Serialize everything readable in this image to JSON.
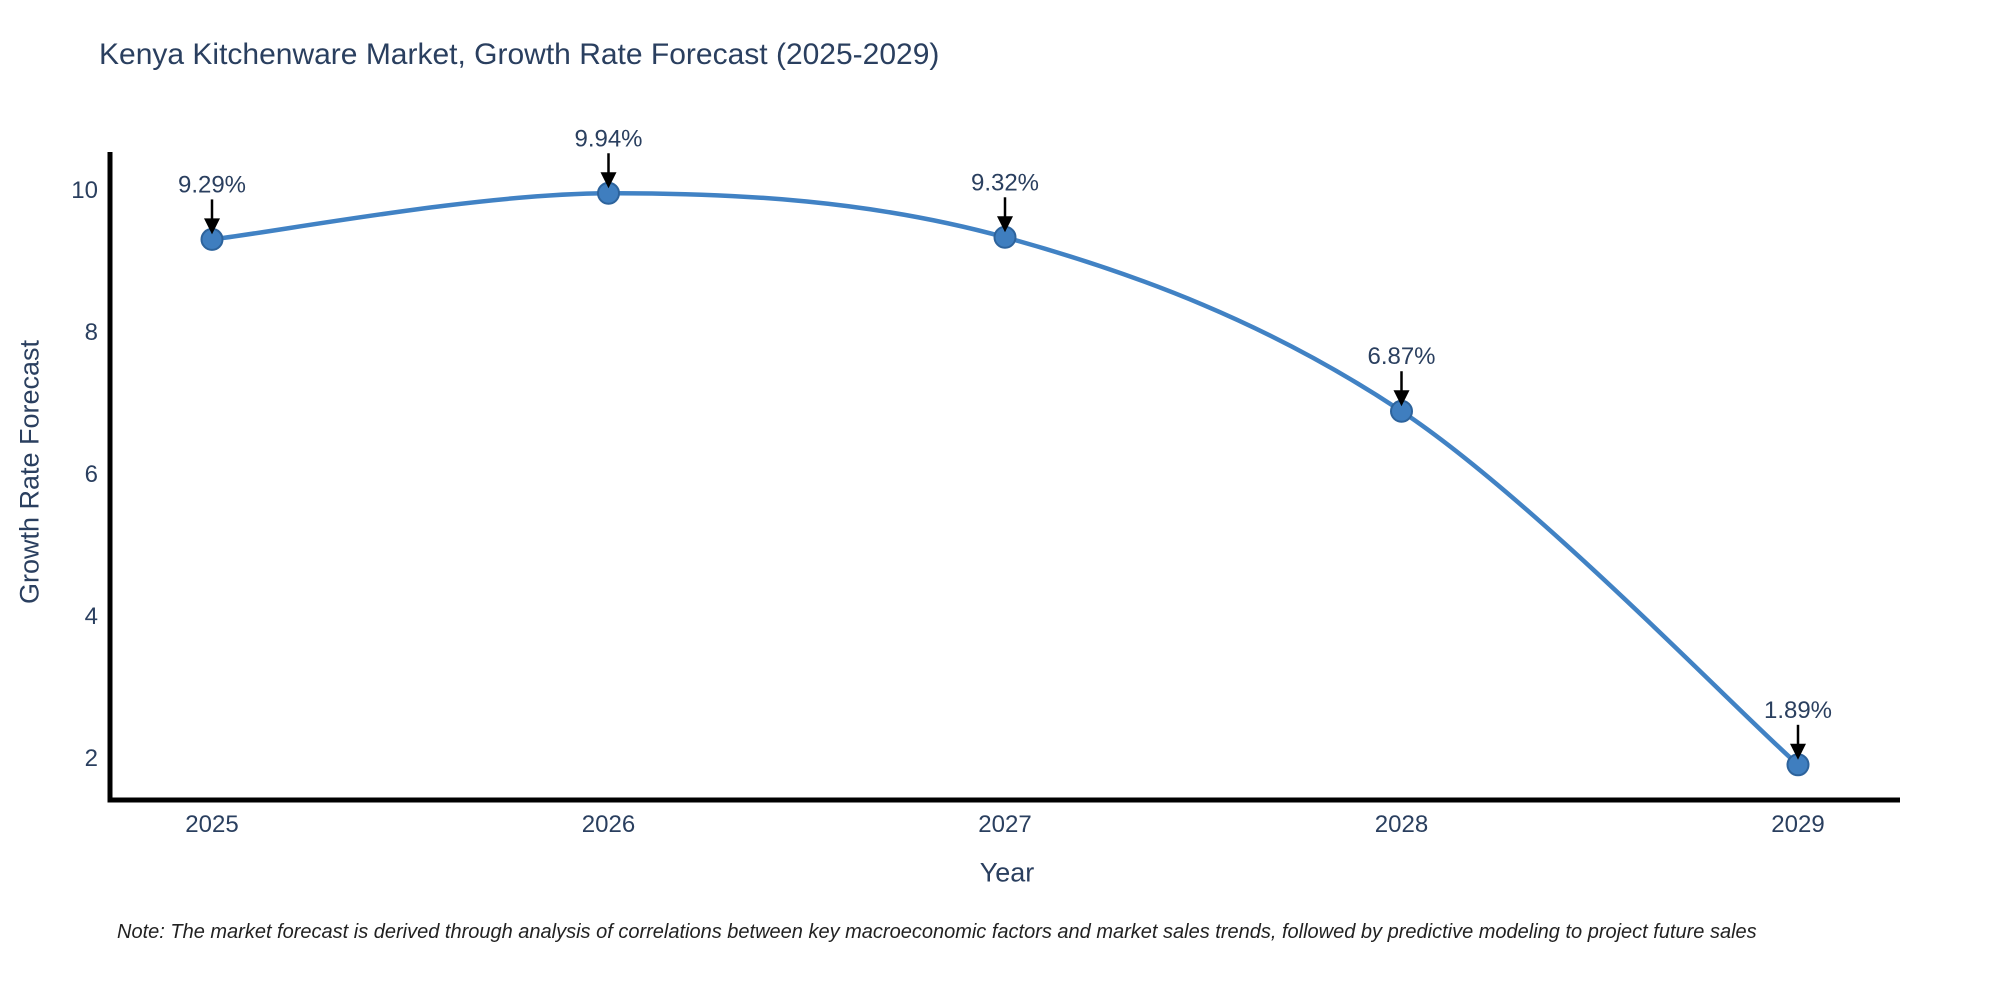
{
  "title": "Kenya Kitchenware Market, Growth Rate Forecast (2025-2029)",
  "note": "Note: The market forecast is derived through analysis of correlations between key macroeconomic factors and market sales trends, followed by predictive modeling to project future sales",
  "chart_data": {
    "type": "line",
    "title": "Kenya Kitchenware Market, Growth Rate Forecast (2025-2029)",
    "xlabel": "Year",
    "ylabel": "Growth Rate Forecast",
    "categories": [
      "2025",
      "2026",
      "2027",
      "2028",
      "2029"
    ],
    "series": [
      {
        "name": "Growth Rate Forecast",
        "values": [
          9.29,
          9.94,
          9.32,
          6.87,
          1.89
        ]
      }
    ],
    "point_labels": [
      "9.29%",
      "9.94%",
      "9.32%",
      "6.87%",
      "1.89%"
    ],
    "yticks": [
      2,
      4,
      6,
      8,
      10
    ],
    "ylim": [
      1.4,
      10.55
    ],
    "xlim_note": "axis padding of about a quarter category on each side",
    "line_shape": "spline",
    "grid": false,
    "legend_position": "none",
    "annotation_style": "value labels above points with black down arrows",
    "colors": {
      "line": "#4182c4",
      "marker": "#3f7ebf",
      "marker_edge": "#2d639c",
      "axis": "#000000",
      "text": "#2a3f5f",
      "arrow": "#000000",
      "note_text": "#222222",
      "background": "#ffffff"
    }
  }
}
